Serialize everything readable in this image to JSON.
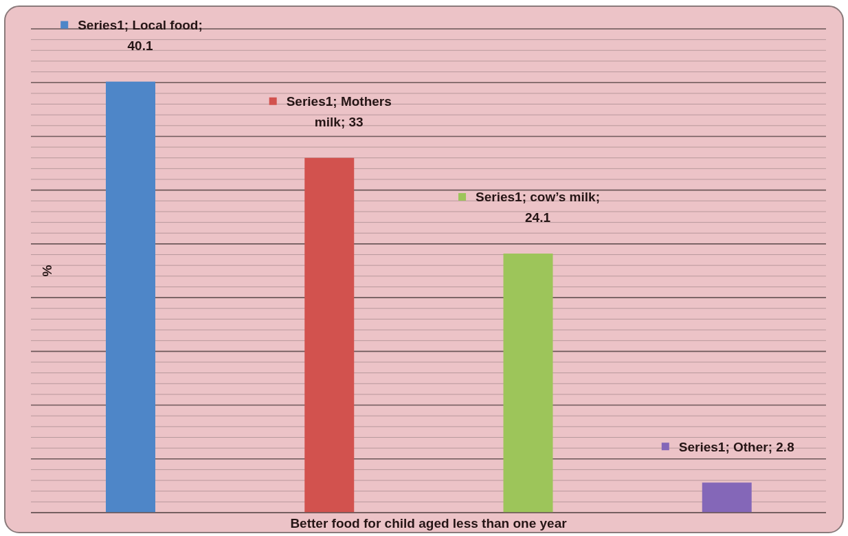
{
  "chart_data": {
    "type": "bar",
    "xlabel": "Better food for child aged less than one year",
    "ylabel": "%",
    "categories": [
      null,
      null,
      null,
      null
    ],
    "values": [
      40.1,
      33,
      24.1,
      2.8
    ],
    "colors": [
      "#4e86c8",
      "#d2524e",
      "#9dc55a",
      "#8467b8"
    ],
    "value_labels": [
      "Series1; Local food; 40.1",
      "Series1; Mothers milk; 33",
      "Series1; cow’s milk; 24.1",
      "Series1; Other; 2.8"
    ],
    "ylim": [
      0,
      45
    ],
    "grid": "y",
    "tick_labels": false
  }
}
